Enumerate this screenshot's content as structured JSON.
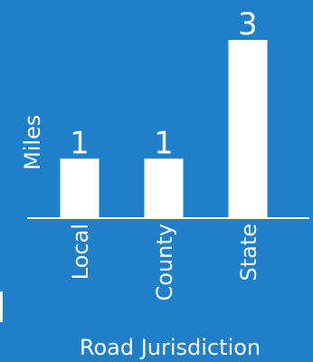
{
  "chart_data": {
    "type": "bar",
    "title": "",
    "xlabel": "Road Jurisdiction",
    "ylabel": "Miles",
    "categories": [
      "Local",
      "County",
      "State"
    ],
    "values": [
      1,
      1,
      3
    ],
    "data_labels": [
      "1",
      "1",
      "3"
    ],
    "ylim": [
      0,
      3
    ],
    "grid": false,
    "colors": {
      "background": "#1f7fc9",
      "bar": "#ffffff",
      "text": "#ffffff"
    }
  }
}
